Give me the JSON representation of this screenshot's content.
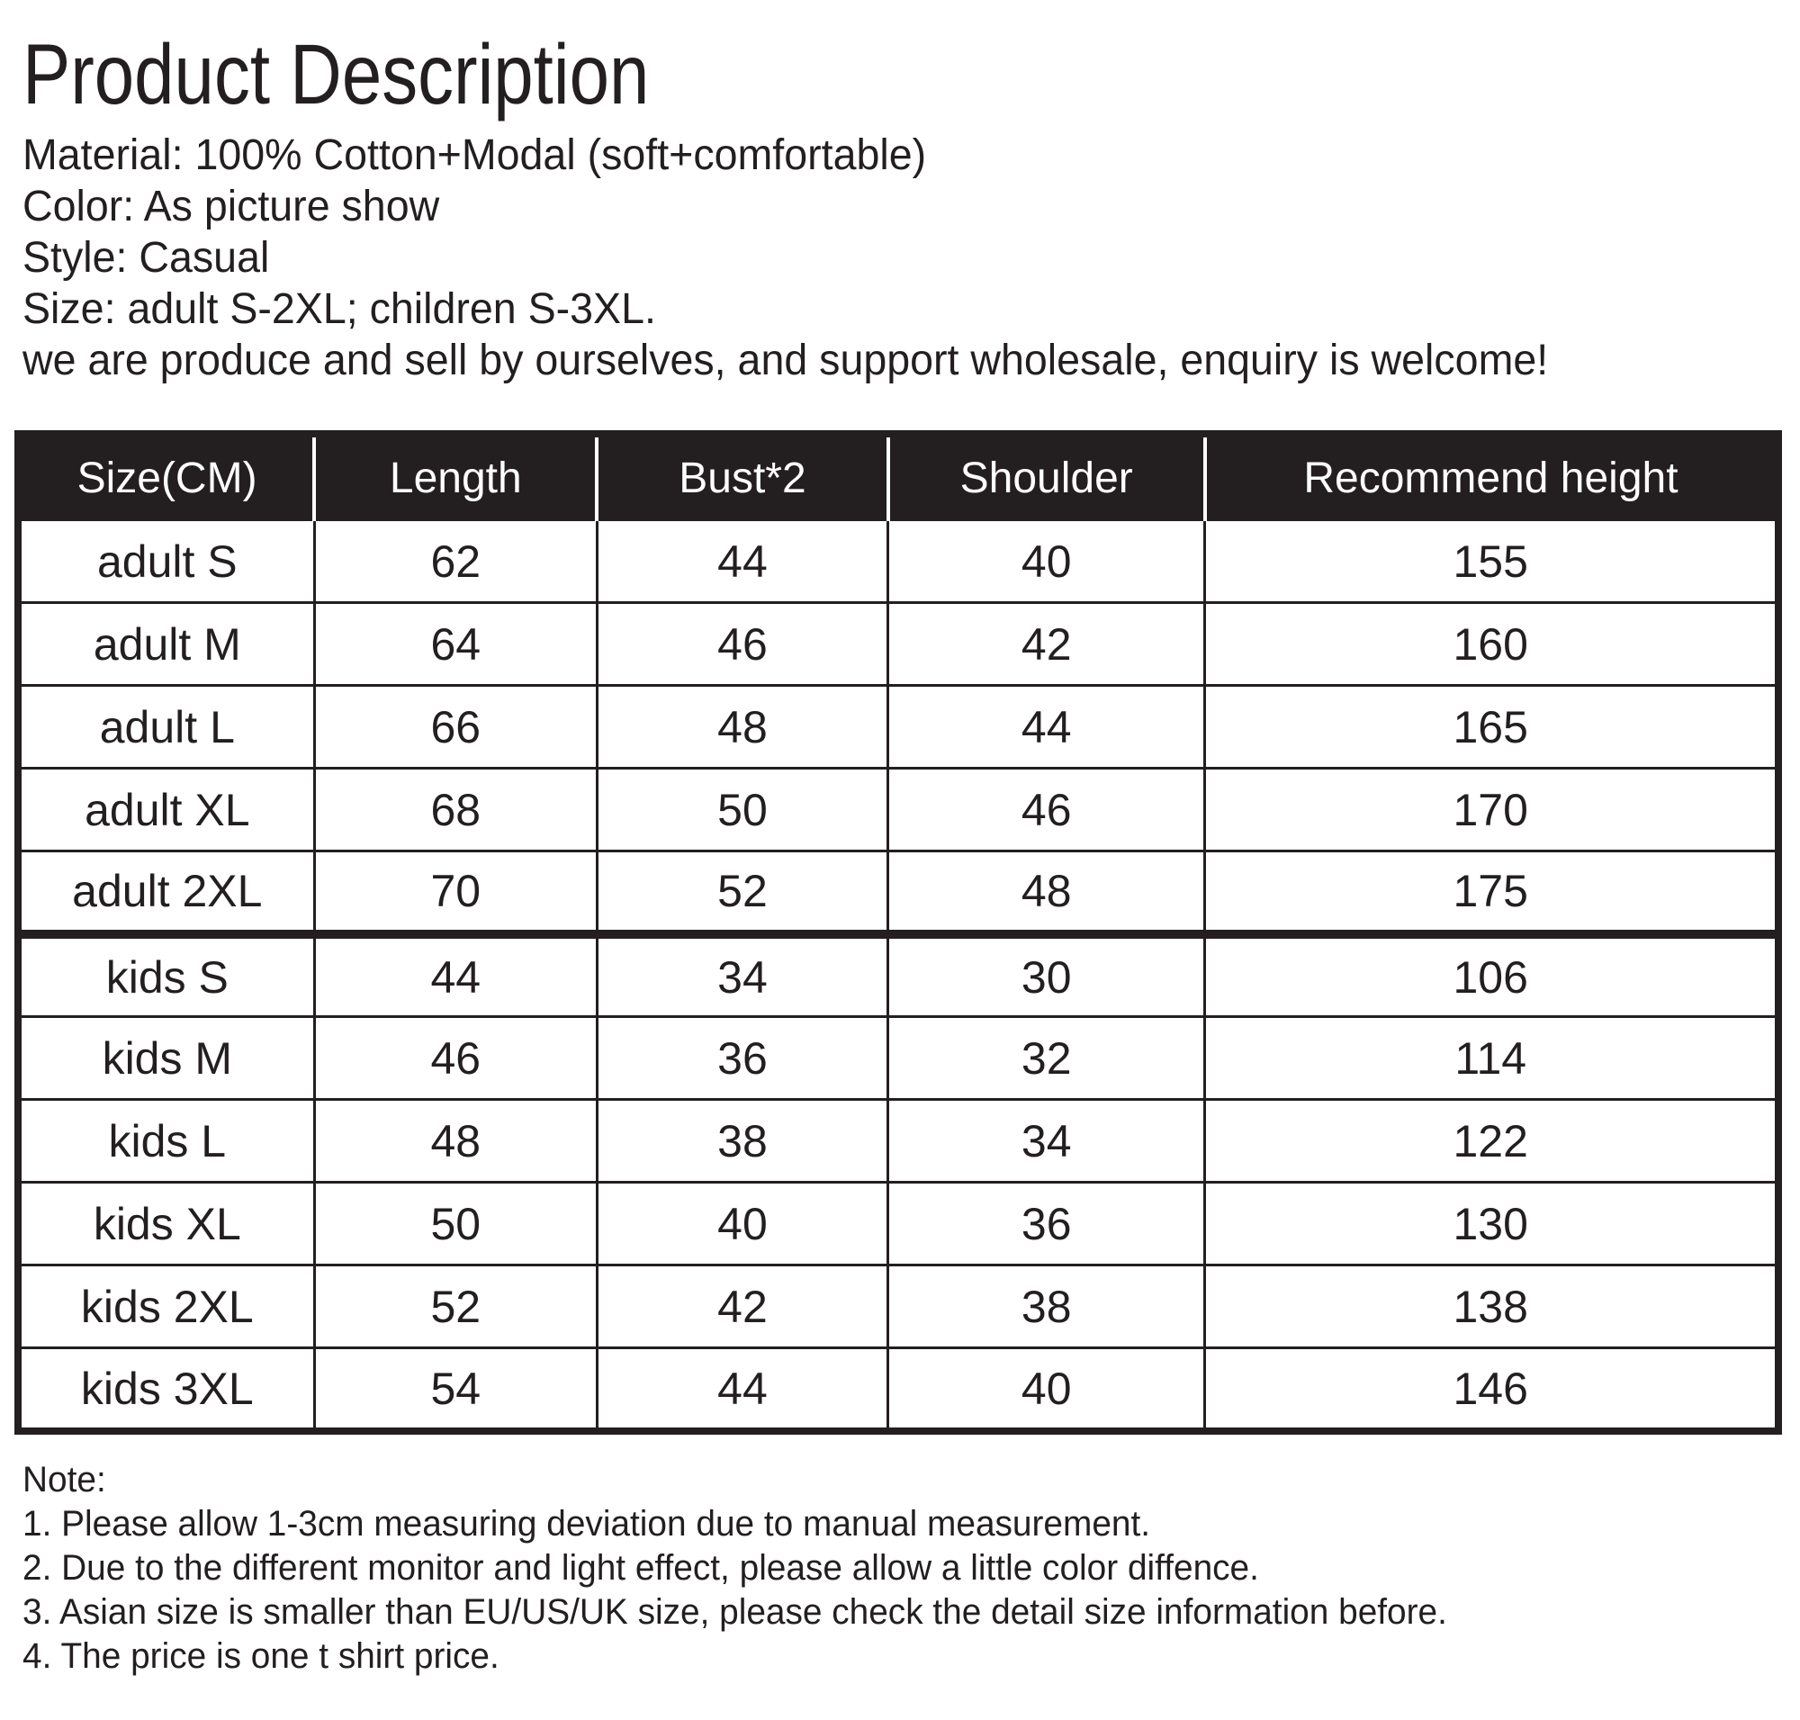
{
  "page": {
    "title": "Product Description"
  },
  "description": {
    "lines": [
      "Material: 100% Cotton+Modal (soft+comfortable)",
      "Color: As picture show",
      "Style: Casual",
      "Size: adult S-2XL; children S-3XL.",
      "we are produce and sell by ourselves, and support wholesale, enquiry is welcome!"
    ]
  },
  "size_table": {
    "columns": [
      "Size(CM)",
      "Length",
      "Bust*2",
      "Shoulder",
      "Recommend height"
    ],
    "rows": [
      [
        "adult S",
        "62",
        "44",
        "40",
        "155"
      ],
      [
        "adult M",
        "64",
        "46",
        "42",
        "160"
      ],
      [
        "adult L",
        "66",
        "48",
        "44",
        "165"
      ],
      [
        "adult XL",
        "68",
        "50",
        "46",
        "170"
      ],
      [
        "adult 2XL",
        "70",
        "52",
        "48",
        "175"
      ],
      [
        "kids S",
        "44",
        "34",
        "30",
        "106"
      ],
      [
        "kids M",
        "46",
        "36",
        "32",
        "114"
      ],
      [
        "kids L",
        "48",
        "38",
        "34",
        "122"
      ],
      [
        "kids XL",
        "50",
        "40",
        "36",
        "130"
      ],
      [
        "kids 2XL",
        "52",
        "42",
        "38",
        "138"
      ],
      [
        "kids 3XL",
        "54",
        "44",
        "40",
        "146"
      ]
    ]
  },
  "notes": {
    "heading": "Note:",
    "items": [
      "1. Please allow 1-3cm measuring deviation due to manual measurement.",
      "2. Due to the different monitor and light effect, please allow a little color diffence.",
      "3. Asian size is smaller than EU/US/UK size, please check the detail size information before.",
      "4. The price is one t shirt price."
    ]
  },
  "colors": {
    "text": "#231f20",
    "table_header_bg": "#231f20",
    "table_header_text": "#ffffff",
    "page_bg": "#ffffff"
  }
}
